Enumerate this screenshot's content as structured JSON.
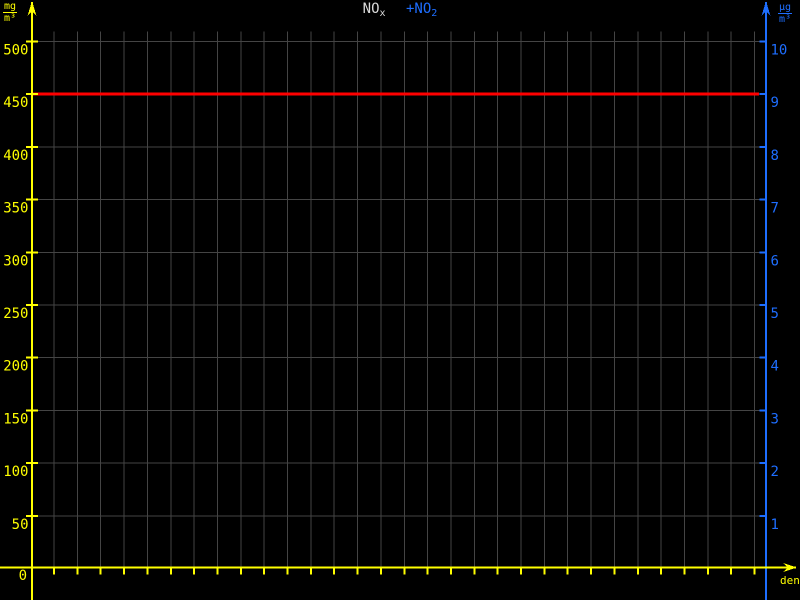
{
  "background": "#000000",
  "title": {
    "series1": "NO",
    "series1_sub": "x",
    "series2": "+NO",
    "series2_sub": "2",
    "series1_color": "#d9d9d9",
    "series2_color": "#1e6eff"
  },
  "units": {
    "left_numerator": "mg",
    "left_denominator": "m³",
    "right_numerator": "µg",
    "right_denominator": "m³"
  },
  "x_axis_label": "den",
  "origin_label": "0",
  "colors": {
    "left_axis": "#ffff00",
    "right_axis": "#1e6eff",
    "grid": "#444444",
    "red_line": "#ff0000"
  },
  "chart_data": {
    "type": "line",
    "title": "NOx +NO2",
    "legend": [
      {
        "label": "NOx",
        "color": "#d9d9d9"
      },
      {
        "label": "+NO2",
        "color": "#1e6eff"
      }
    ],
    "legend_position": "top-center",
    "x_axis": {
      "label": "den",
      "origin_label": "0",
      "tick_count": 31,
      "tick_labels_visible": false
    },
    "y_axis_left": {
      "unit": "mg/m³",
      "range": [
        0,
        510
      ],
      "tick_interval": 50,
      "ticks": [
        50,
        100,
        150,
        200,
        250,
        300,
        350,
        400,
        450,
        500
      ],
      "color": "#ffff00"
    },
    "y_axis_right": {
      "unit": "µg/m³",
      "range": [
        0,
        10.2
      ],
      "tick_interval": 1,
      "ticks": [
        1,
        2,
        3,
        4,
        5,
        6,
        7,
        8,
        9,
        10
      ],
      "color": "#1e6eff"
    },
    "grid": true,
    "series": [
      {
        "name": "red-constant-line",
        "type": "constant",
        "axis": "left",
        "value": 450,
        "color": "#ff0000"
      }
    ]
  }
}
